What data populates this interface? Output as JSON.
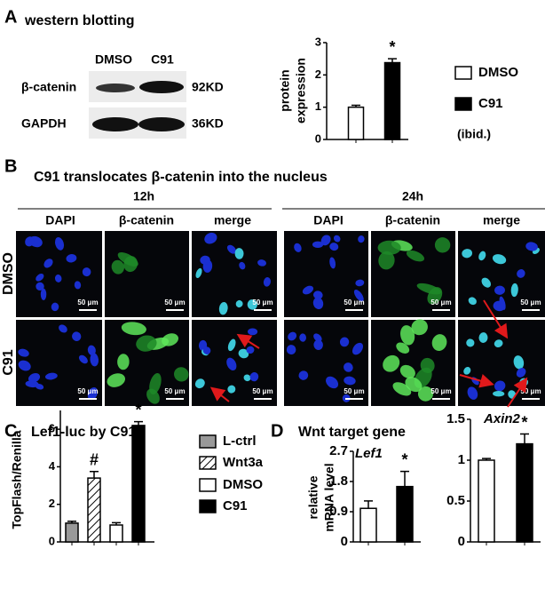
{
  "panel_labels": [
    "A",
    "B",
    "C",
    "D"
  ],
  "panel_a": {
    "heading": "western blotting",
    "lanes": [
      "DMSO",
      "C91"
    ],
    "proteins": [
      "β-catenin",
      "GAPDH"
    ],
    "sizes": [
      "92KD",
      "36KD"
    ]
  },
  "panel_b": {
    "title": "C91 translocates β-catenin into the nucleus",
    "times": [
      "12h",
      "24h"
    ],
    "channels": [
      "DAPI",
      "β-catenin",
      "merge"
    ],
    "rows": [
      "DMSO",
      "C91"
    ],
    "scale_bar": "50 μm"
  },
  "panel_d": {
    "heading": "Wnt target gene"
  },
  "chart_data": [
    {
      "type": "bar",
      "y_label": [
        "protein",
        "expression"
      ],
      "categories": [
        null
      ],
      "ylim": [
        0,
        3
      ],
      "yticks": [
        0,
        1,
        2,
        3
      ],
      "series": [
        {
          "name": "DMSO",
          "color": "#ffffff",
          "values": [
            1.0
          ],
          "errors": [
            0.06
          ]
        },
        {
          "name": "C91",
          "color": "#000000",
          "values": [
            2.38
          ],
          "errors": [
            0.12
          ],
          "annotation": "*"
        }
      ],
      "legend_note": "(ibid.)"
    },
    {
      "type": "bar",
      "title": "Lef1-luc by C91",
      "y_label": [
        "TopFlash/Renilla"
      ],
      "categories": [
        null
      ],
      "ylim": [
        0,
        7
      ],
      "yticks": [
        0,
        2,
        4,
        6
      ],
      "series": [
        {
          "name": "L-ctrl",
          "color": "#999999",
          "values": [
            1.0
          ],
          "errors": [
            0.1
          ]
        },
        {
          "name": "Wnt3a",
          "color": "#ffffff",
          "hatch": true,
          "values": [
            3.4
          ],
          "errors": [
            0.35
          ],
          "annotation": "#"
        },
        {
          "name": "DMSO",
          "color": "#ffffff",
          "values": [
            0.9
          ],
          "errors": [
            0.12
          ]
        },
        {
          "name": "C91",
          "color": "#000000",
          "values": [
            6.2
          ],
          "errors": [
            0.2
          ],
          "annotation": "*"
        }
      ]
    },
    {
      "type": "bar",
      "title": "Lef1",
      "y_label": [
        "relative",
        "mRNA level"
      ],
      "categories": [
        null
      ],
      "ylim": [
        0,
        2.7
      ],
      "yticks": [
        0,
        0.9,
        1.8,
        2.7
      ],
      "series": [
        {
          "name": "DMSO",
          "color": "#ffffff",
          "values": [
            1.0
          ],
          "errors": [
            0.22
          ]
        },
        {
          "name": "C91",
          "color": "#000000",
          "values": [
            1.65
          ],
          "errors": [
            0.45
          ],
          "annotation": "*"
        }
      ]
    },
    {
      "type": "bar",
      "title": "Axin2",
      "categories": [
        null
      ],
      "ylim": [
        0,
        1.5
      ],
      "yticks": [
        0,
        0.5,
        1,
        1.5
      ],
      "series": [
        {
          "name": "DMSO",
          "color": "#ffffff",
          "values": [
            1.0
          ],
          "errors": [
            0.02
          ]
        },
        {
          "name": "C91",
          "color": "#000000",
          "values": [
            1.2
          ],
          "errors": [
            0.12
          ],
          "annotation": "*"
        }
      ]
    }
  ]
}
